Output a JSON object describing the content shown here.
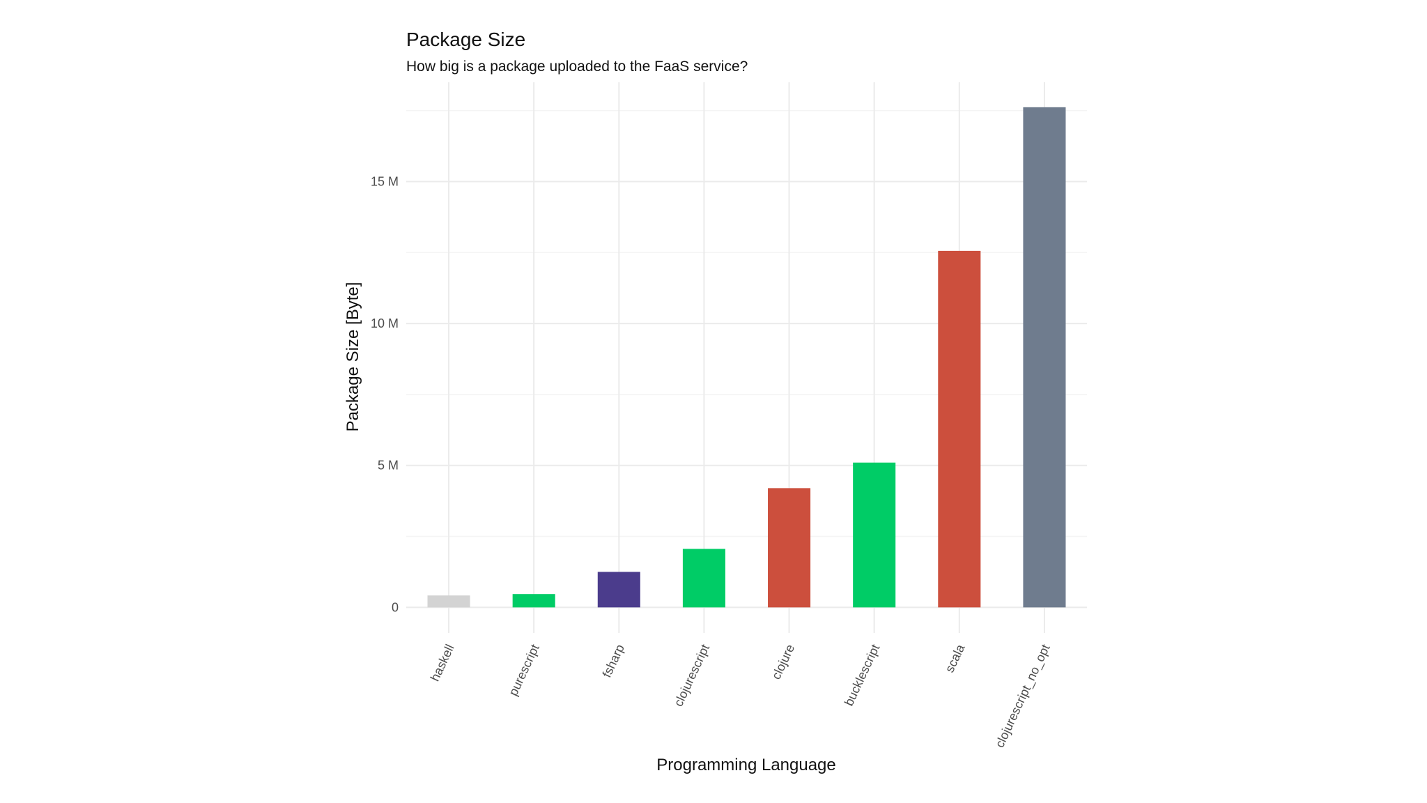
{
  "chart_data": {
    "type": "bar",
    "title": "Package Size",
    "subtitle": "How big is a package uploaded to the FaaS service?",
    "xlabel": "Programming Language",
    "ylabel": "Package Size [Byte]",
    "categories": [
      "haskell",
      "purescript",
      "fsharp",
      "clojurescript",
      "clojure",
      "bucklescript",
      "scala",
      "clojurescript_no_opt"
    ],
    "values": [
      420000,
      470000,
      1250000,
      2060000,
      4200000,
      5100000,
      12560000,
      17620000
    ],
    "colors": [
      "#d3d3d3",
      "#00cc66",
      "#4b3c8c",
      "#00cc66",
      "#cc4f3d",
      "#00cc66",
      "#cc4f3d",
      "#6f7c8e"
    ],
    "ylim": [
      -900000,
      18500000
    ],
    "y_ticks": [
      0,
      5000000,
      10000000,
      15000000
    ],
    "y_tick_labels": [
      "0",
      "5 M",
      "10 M",
      "15 M"
    ],
    "grid": true,
    "legend": "none"
  }
}
